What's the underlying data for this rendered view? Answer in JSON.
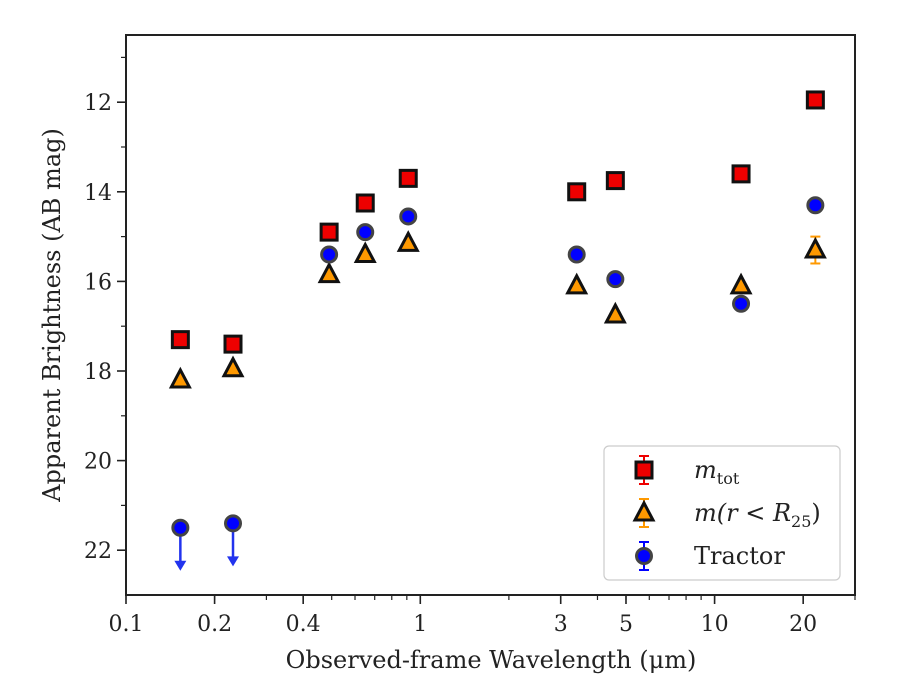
{
  "chart_data": {
    "type": "scatter",
    "xlabel": "Observed-frame Wavelength (μm)",
    "ylabel": "Apparent Brightness (AB mag)",
    "x_scale": "log",
    "y_inverted": true,
    "xlim": [
      0.1,
      30
    ],
    "ylim": [
      23.0,
      10.5
    ],
    "x_ticks": [
      0.1,
      0.2,
      0.4,
      1,
      3,
      5,
      10,
      20
    ],
    "x_tick_labels": [
      "0.1",
      "0.2",
      "0.4",
      "1",
      "3",
      "5",
      "10",
      "20"
    ],
    "y_ticks": [
      12,
      14,
      16,
      18,
      20,
      22
    ],
    "y_tick_labels": [
      "12",
      "14",
      "16",
      "18",
      "20",
      "22"
    ],
    "legend_position": "bottom-right",
    "series": [
      {
        "name": "m_tot",
        "legend_label": "m",
        "legend_sub": "tot",
        "marker": "square",
        "fill": "#ee0000",
        "edge": "#111111",
        "points": [
          {
            "x": 0.153,
            "y": 17.3
          },
          {
            "x": 0.231,
            "y": 17.4
          },
          {
            "x": 0.49,
            "y": 14.9
          },
          {
            "x": 0.65,
            "y": 14.25
          },
          {
            "x": 0.91,
            "y": 13.7
          },
          {
            "x": 3.4,
            "y": 14.0
          },
          {
            "x": 4.6,
            "y": 13.75
          },
          {
            "x": 12.3,
            "y": 13.6
          },
          {
            "x": 22.0,
            "y": 11.95
          }
        ]
      },
      {
        "name": "m(r<R25)",
        "legend_label": "m(r < R",
        "legend_sub": "25",
        "legend_tail": ")",
        "marker": "triangle",
        "fill": "#ff9900",
        "edge": "#111111",
        "points": [
          {
            "x": 0.153,
            "y": 18.2
          },
          {
            "x": 0.231,
            "y": 17.95
          },
          {
            "x": 0.49,
            "y": 15.85
          },
          {
            "x": 0.65,
            "y": 15.4
          },
          {
            "x": 0.91,
            "y": 15.15
          },
          {
            "x": 3.4,
            "y": 16.1
          },
          {
            "x": 4.6,
            "y": 16.75
          },
          {
            "x": 12.3,
            "y": 16.1
          },
          {
            "x": 22.0,
            "y": 15.3,
            "err": 0.3
          }
        ]
      },
      {
        "name": "Tractor",
        "legend_label": "Tractor",
        "marker": "circle",
        "fill": "#0000ff",
        "edge": "#444444",
        "points": [
          {
            "x": 0.153,
            "y": 21.5,
            "upper_limit": true
          },
          {
            "x": 0.231,
            "y": 21.4,
            "upper_limit": true
          },
          {
            "x": 0.49,
            "y": 15.4
          },
          {
            "x": 0.65,
            "y": 14.9
          },
          {
            "x": 0.91,
            "y": 14.55
          },
          {
            "x": 3.4,
            "y": 15.4
          },
          {
            "x": 4.6,
            "y": 15.95
          },
          {
            "x": 12.3,
            "y": 16.5
          },
          {
            "x": 22.0,
            "y": 14.3
          }
        ]
      }
    ]
  }
}
